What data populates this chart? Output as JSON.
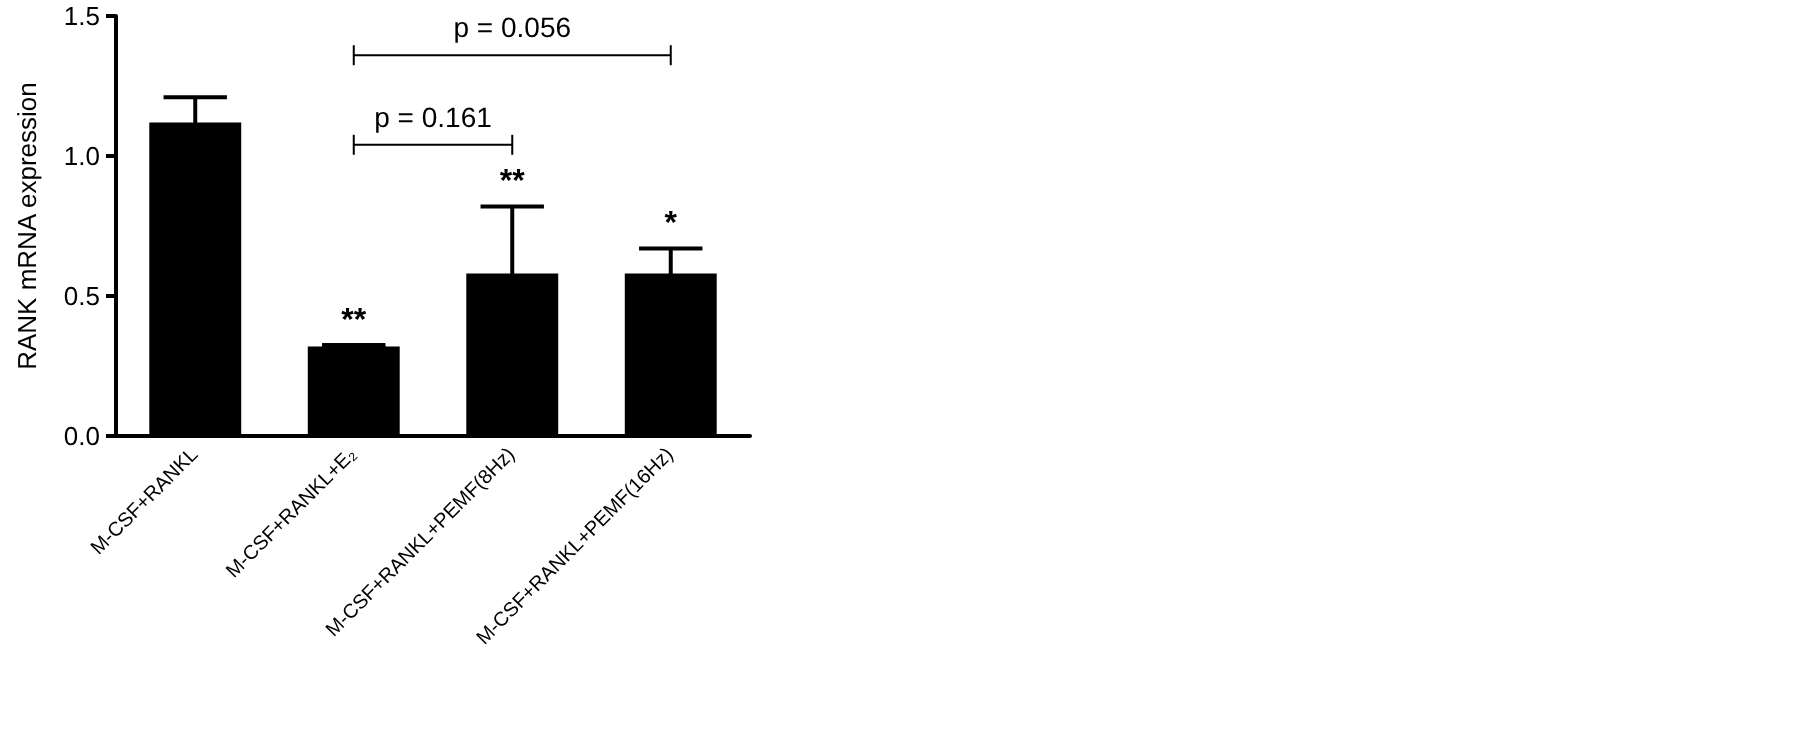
{
  "chart_data": {
    "type": "bar",
    "ylabel": "RANK mRNA expression",
    "categories": [
      "M-CSF+RANKL",
      "M-CSF+RANKL+E₂",
      "M-CSF+RANKL+PEMF(8Hz)",
      "M-CSF+RANKL+PEMF(16Hz)"
    ],
    "values": [
      1.12,
      0.32,
      0.58,
      0.58
    ],
    "errors": [
      0.09,
      0.005,
      0.24,
      0.09
    ],
    "color": "#000000",
    "ylim": [
      0,
      1.5
    ],
    "yticks": [
      {
        "value": 0,
        "label": "0.0"
      },
      {
        "value": 0.5,
        "label": "0.5"
      },
      {
        "value": 1,
        "label": "1.0"
      },
      {
        "value": 1.5,
        "label": "1.5"
      }
    ],
    "annotations": [
      {
        "text": "**",
        "x": "M-CSF+RANKL+E₂",
        "y": 0.325
      },
      {
        "text": "**",
        "x": "M-CSF+RANKL+PEMF(8Hz)",
        "y": 0.82
      },
      {
        "text": "*",
        "x": "M-CSF+RANKL+PEMF(16Hz)",
        "y": 0.67
      },
      "p = 0.161",
      "p = 0.056"
    ]
  }
}
